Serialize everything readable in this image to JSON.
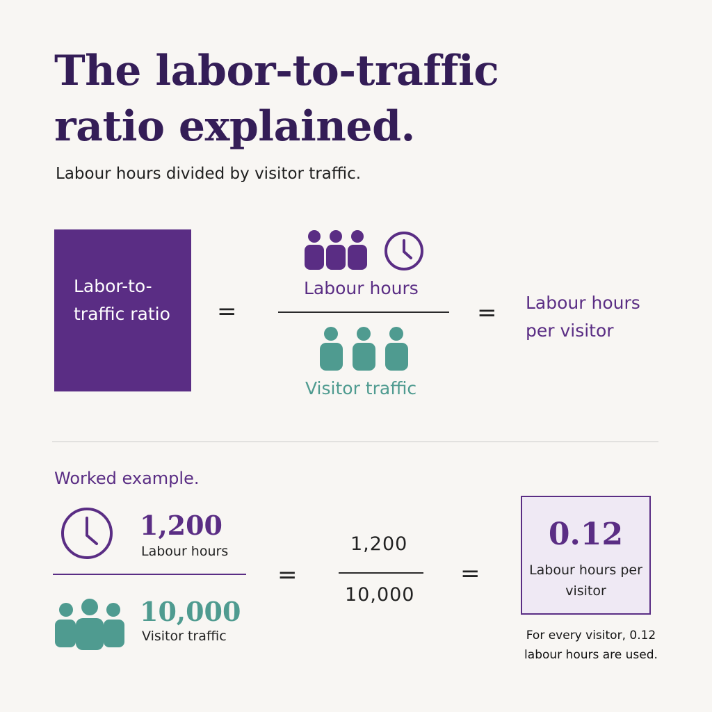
{
  "header": {
    "title": "The labor-to-traffic ratio explained.",
    "subtitle": "Labour hours divided by visitor traffic."
  },
  "formula": {
    "ratio_label": "Labor-to- traffic ratio",
    "equals": "=",
    "numerator_label": "Labour hours",
    "denominator_label": "Visitor traffic",
    "result_label": "Labour hours per visitor",
    "icons": {
      "numerator": [
        "people-group-icon",
        "clock-icon"
      ],
      "denominator": "people-group-icon"
    }
  },
  "example": {
    "heading": "Worked example.",
    "hours_value": "1,200",
    "hours_label": "Labour hours",
    "traffic_value": "10,000",
    "traffic_label": "Visitor traffic",
    "equals": "=",
    "fraction_numerator": "1,200",
    "fraction_denominator": "10,000",
    "result_value": "0.12",
    "result_label": "Labour hours per visitor",
    "note": "For every visitor, 0.12 labour hours are used."
  },
  "colors": {
    "primary_purple": "#5a2d84",
    "dark_purple": "#341d57",
    "teal": "#4f9b90",
    "background": "#f8f6f3",
    "result_fill": "#efe9f4"
  }
}
